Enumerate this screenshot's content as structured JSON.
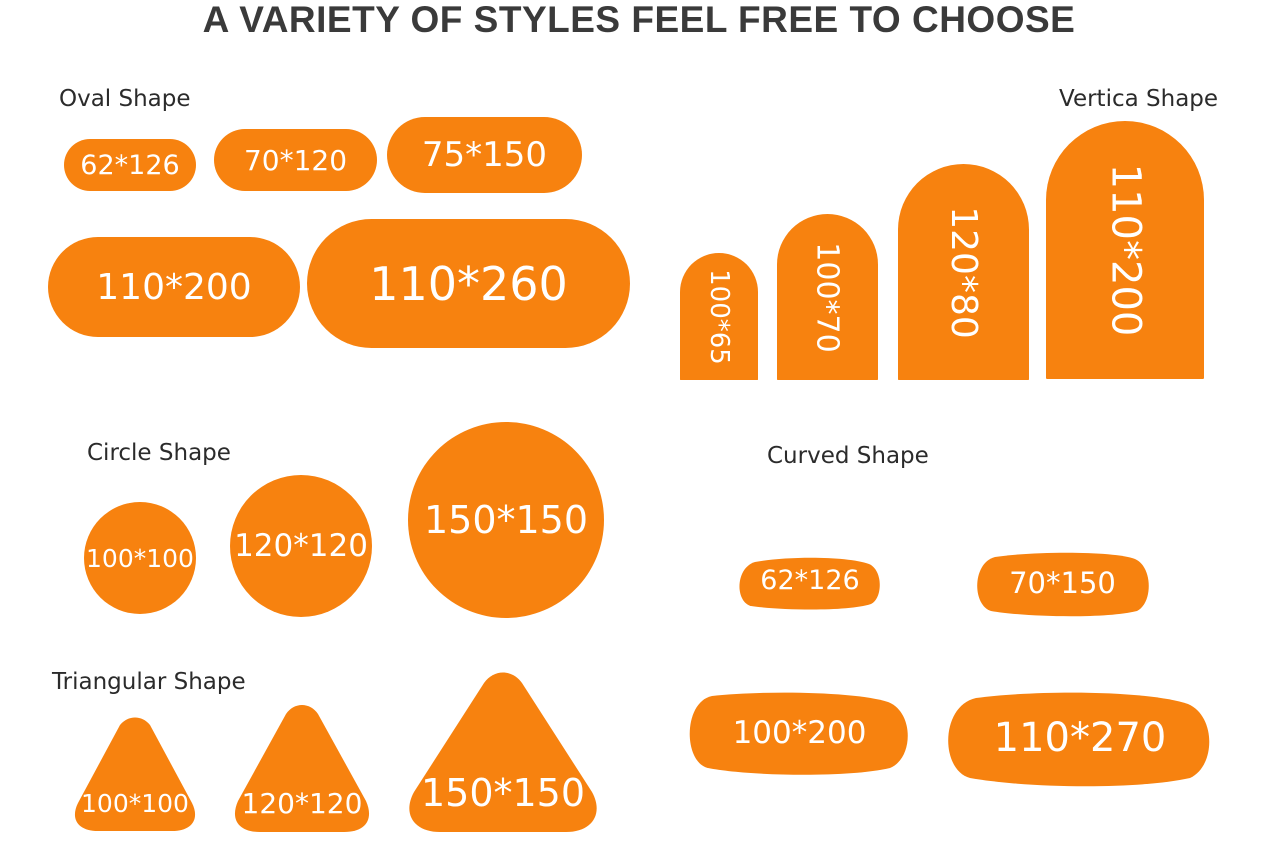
{
  "title": "A VARIETY OF STYLES FEEL FREE TO CHOOSE",
  "accent_color": "#f7820f",
  "oval": {
    "label": "Oval Shape",
    "sizes": [
      "62*126",
      "70*120",
      "75*150",
      "110*200",
      "110*260"
    ]
  },
  "vertical": {
    "label": "Vertica Shape",
    "sizes": [
      "100*65",
      "100*70",
      "120*80",
      "110*200"
    ]
  },
  "circle": {
    "label": "Circle Shape",
    "sizes": [
      "100*100",
      "120*120",
      "150*150"
    ]
  },
  "curved": {
    "label": "Curved Shape",
    "sizes": [
      "62*126",
      "70*150",
      "100*200",
      "110*270"
    ]
  },
  "triangular": {
    "label": "Triangular  Shape",
    "sizes": [
      "100*100",
      "120*120",
      "150*150"
    ]
  }
}
